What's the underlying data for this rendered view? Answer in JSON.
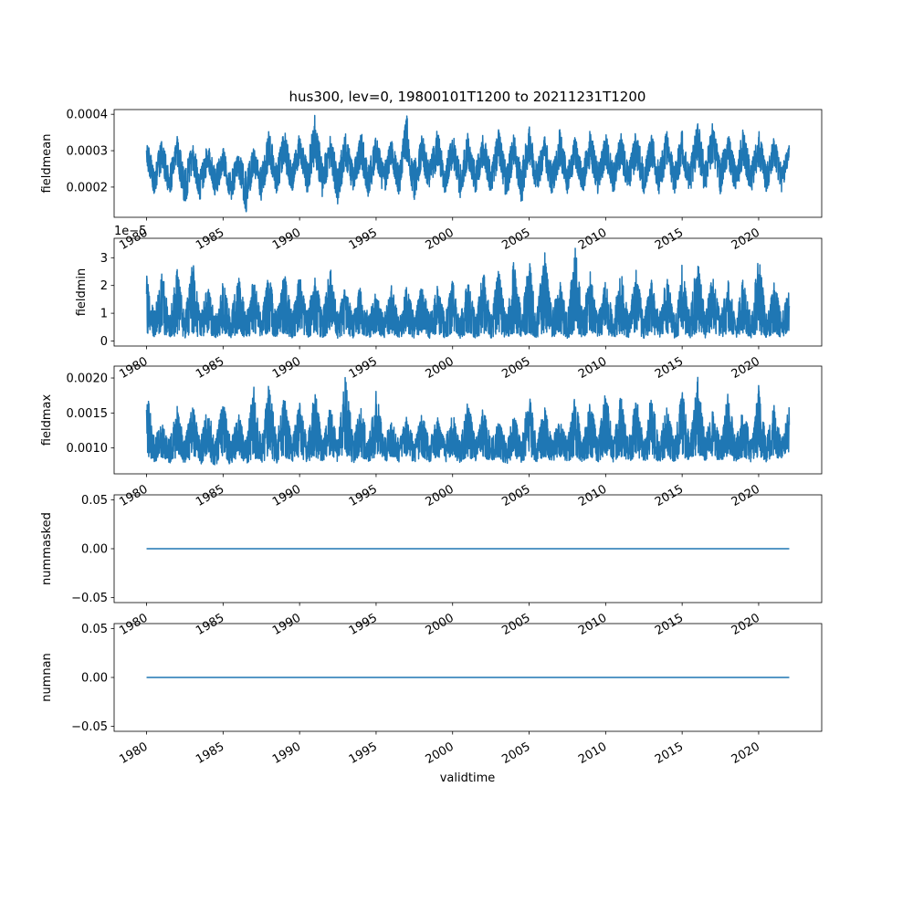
{
  "figure": {
    "title": "hus300, lev=0, 19800101T1200 to 20211231T1200",
    "xlabel": "validtime"
  },
  "chart_data": [
    {
      "type": "line",
      "ylabel": "fieldmean",
      "offset_text": "",
      "yticks": [
        0.0002,
        0.0003,
        0.0004
      ],
      "ytick_labels": [
        "0.0002",
        "0.0003",
        "0.0004"
      ],
      "ylim": [
        0.000117,
        0.000413
      ],
      "xlim": [
        1977.88,
        2024.12
      ],
      "xticks": [
        1980,
        1985,
        1990,
        1995,
        2000,
        2005,
        2010,
        2015,
        2020
      ],
      "xtick_labels": [
        "1980",
        "1985",
        "1990",
        "1995",
        "2000",
        "2005",
        "2010",
        "2015",
        "2020"
      ],
      "color": "#1f77b4",
      "series_envelope": {
        "x": [
          1980.0,
          1980.5,
          1981.0,
          1981.5,
          1982.0,
          1982.5,
          1983.0,
          1983.5,
          1984.0,
          1984.5,
          1985.0,
          1985.5,
          1986.0,
          1986.5,
          1987.0,
          1987.5,
          1988.0,
          1988.5,
          1989.0,
          1989.5,
          1990.0,
          1990.5,
          1991.0,
          1991.5,
          1992.0,
          1992.5,
          1993.0,
          1993.5,
          1994.0,
          1994.5,
          1995.0,
          1995.5,
          1996.0,
          1996.5,
          1997.0,
          1997.5,
          1998.0,
          1998.5,
          1999.0,
          1999.5,
          2000.0,
          2000.5,
          2001.0,
          2001.5,
          2002.0,
          2002.5,
          2003.0,
          2003.5,
          2004.0,
          2004.5,
          2005.0,
          2005.5,
          2006.0,
          2006.5,
          2007.0,
          2007.5,
          2008.0,
          2008.5,
          2009.0,
          2009.5,
          2010.0,
          2010.5,
          2011.0,
          2011.5,
          2012.0,
          2012.5,
          2013.0,
          2013.5,
          2014.0,
          2014.5,
          2015.0,
          2015.5,
          2016.0,
          2016.5,
          2017.0,
          2017.5,
          2018.0,
          2018.5,
          2019.0,
          2019.5,
          2020.0,
          2020.5,
          2021.0,
          2021.5,
          2022.0
        ],
        "y_max": [
          0.00033,
          0.00026,
          0.00033,
          0.00025,
          0.00034,
          0.00025,
          0.00032,
          0.00025,
          0.00032,
          0.00025,
          0.00031,
          0.00024,
          0.0003,
          0.00024,
          0.00031,
          0.00025,
          0.00036,
          0.00026,
          0.00036,
          0.00026,
          0.00035,
          0.00027,
          0.0004,
          0.00027,
          0.00034,
          0.00026,
          0.00035,
          0.00026,
          0.00036,
          0.00026,
          0.00034,
          0.00026,
          0.00033,
          0.00026,
          0.0004,
          0.00027,
          0.00035,
          0.00027,
          0.00036,
          0.00026,
          0.00035,
          0.00026,
          0.00035,
          0.00026,
          0.00035,
          0.00026,
          0.00036,
          0.00026,
          0.00035,
          0.00026,
          0.00037,
          0.00026,
          0.00035,
          0.00026,
          0.00036,
          0.00026,
          0.00034,
          0.00026,
          0.00036,
          0.00026,
          0.00035,
          0.00026,
          0.00035,
          0.00026,
          0.00036,
          0.00026,
          0.00035,
          0.00026,
          0.00036,
          0.00026,
          0.00036,
          0.00026,
          0.00039,
          0.00027,
          0.00038,
          0.00027,
          0.00035,
          0.00026,
          0.00037,
          0.00026,
          0.00036,
          0.00026,
          0.00034,
          0.00026,
          0.00032
        ],
        "y_min": [
          0.00026,
          0.00018,
          0.00025,
          0.00017,
          0.00026,
          0.00014,
          0.00025,
          0.00016,
          0.00025,
          0.00017,
          0.00024,
          0.00016,
          0.00023,
          0.00013,
          0.00024,
          0.00016,
          0.00026,
          0.00018,
          0.00026,
          0.00018,
          0.00027,
          0.00018,
          0.00027,
          0.00017,
          0.00026,
          0.00015,
          0.00026,
          0.00018,
          0.00026,
          0.00017,
          0.00026,
          0.00017,
          0.00026,
          0.00017,
          0.00027,
          0.00016,
          0.00026,
          0.00018,
          0.00026,
          0.00018,
          0.00026,
          0.00017,
          0.00026,
          0.00018,
          0.00026,
          0.00018,
          0.00026,
          0.00016,
          0.00026,
          0.00015,
          0.00027,
          0.00018,
          0.00026,
          0.00017,
          0.00026,
          0.00018,
          0.00026,
          0.00018,
          0.00026,
          0.00018,
          0.00026,
          0.00018,
          0.00026,
          0.00018,
          0.00026,
          0.00018,
          0.00026,
          0.00018,
          0.00026,
          0.00018,
          0.00026,
          0.00018,
          0.00027,
          0.00018,
          0.00027,
          0.00018,
          0.00026,
          0.00018,
          0.00026,
          0.00018,
          0.00026,
          0.00018,
          0.00026,
          0.00018,
          0.00028
        ]
      }
    },
    {
      "type": "line",
      "ylabel": "fieldmin",
      "offset_text": "1e−5",
      "yticks": [
        0,
        1,
        2,
        3
      ],
      "ytick_labels": [
        "0",
        "1",
        "2",
        "3"
      ],
      "ylim": [
        -0.18,
        3.7
      ],
      "xlim": [
        1977.88,
        2024.12
      ],
      "xticks": [
        1980,
        1985,
        1990,
        1995,
        2000,
        2005,
        2010,
        2015,
        2020
      ],
      "xtick_labels": [
        "1980",
        "1985",
        "1990",
        "1995",
        "2000",
        "2005",
        "2010",
        "2015",
        "2020"
      ],
      "color": "#1f77b4",
      "series_envelope": {
        "x": [
          1980.0,
          1980.5,
          1981.0,
          1981.5,
          1982.0,
          1982.5,
          1983.0,
          1983.5,
          1984.0,
          1984.5,
          1985.0,
          1985.5,
          1986.0,
          1986.5,
          1987.0,
          1987.5,
          1988.0,
          1988.5,
          1989.0,
          1989.5,
          1990.0,
          1990.5,
          1991.0,
          1991.5,
          1992.0,
          1992.5,
          1993.0,
          1993.5,
          1994.0,
          1994.5,
          1995.0,
          1995.5,
          1996.0,
          1996.5,
          1997.0,
          1997.5,
          1998.0,
          1998.5,
          1999.0,
          1999.5,
          2000.0,
          2000.5,
          2001.0,
          2001.5,
          2002.0,
          2002.5,
          2003.0,
          2003.5,
          2004.0,
          2004.5,
          2005.0,
          2005.5,
          2006.0,
          2006.5,
          2007.0,
          2007.5,
          2008.0,
          2008.5,
          2009.0,
          2009.5,
          2010.0,
          2010.5,
          2011.0,
          2011.5,
          2012.0,
          2012.5,
          2013.0,
          2013.5,
          2014.0,
          2014.5,
          2015.0,
          2015.5,
          2016.0,
          2016.5,
          2017.0,
          2017.5,
          2018.0,
          2018.5,
          2019.0,
          2019.5,
          2020.0,
          2020.5,
          2021.0,
          2021.5,
          2022.0
        ],
        "y_max": [
          2.5,
          1.0,
          2.6,
          0.9,
          2.6,
          0.9,
          3.0,
          0.9,
          2.0,
          0.9,
          2.2,
          0.9,
          2.5,
          0.9,
          2.3,
          0.9,
          2.5,
          1.0,
          2.5,
          1.0,
          2.4,
          1.0,
          2.4,
          1.0,
          2.7,
          1.0,
          2.0,
          0.9,
          2.2,
          0.9,
          1.8,
          0.9,
          2.0,
          0.9,
          2.0,
          0.9,
          2.1,
          0.9,
          2.0,
          0.9,
          2.2,
          0.9,
          2.2,
          0.9,
          2.6,
          0.9,
          2.6,
          0.9,
          2.9,
          1.0,
          3.0,
          1.0,
          3.4,
          1.0,
          2.2,
          0.9,
          3.5,
          1.0,
          2.6,
          0.9,
          2.2,
          0.9,
          2.6,
          0.9,
          2.6,
          0.9,
          2.2,
          0.9,
          2.4,
          0.9,
          2.8,
          1.0,
          3.1,
          1.0,
          2.4,
          0.9,
          2.2,
          0.9,
          2.3,
          0.9,
          3.1,
          1.0,
          2.3,
          0.9,
          1.9
        ],
        "y_min": [
          0.3,
          0.1,
          0.3,
          0.1,
          0.2,
          0.1,
          0.3,
          0.1,
          0.3,
          0.1,
          0.3,
          0.1,
          0.3,
          0.1,
          0.3,
          0.1,
          0.3,
          0.1,
          0.3,
          0.1,
          0.3,
          0.1,
          0.3,
          0.1,
          0.3,
          0.1,
          0.3,
          0.1,
          0.3,
          0.1,
          0.3,
          0.1,
          0.3,
          0.1,
          0.3,
          0.1,
          0.3,
          0.1,
          0.3,
          0.1,
          0.3,
          0.1,
          0.3,
          0.1,
          0.3,
          0.1,
          0.3,
          0.1,
          0.3,
          0.1,
          0.3,
          0.1,
          0.3,
          0.1,
          0.3,
          0.1,
          0.3,
          0.1,
          0.3,
          0.1,
          0.3,
          0.1,
          0.3,
          0.1,
          0.3,
          0.1,
          0.3,
          0.1,
          0.3,
          0.1,
          0.3,
          0.1,
          0.3,
          0.1,
          0.3,
          0.1,
          0.3,
          0.1,
          0.3,
          0.1,
          0.3,
          0.1,
          0.3,
          0.1,
          0.4
        ]
      }
    },
    {
      "type": "line",
      "ylabel": "fieldmax",
      "offset_text": "",
      "yticks": [
        0.001,
        0.0015,
        0.002
      ],
      "ytick_labels": [
        "0.0010",
        "0.0015",
        "0.0020"
      ],
      "ylim": [
        0.00063,
        0.00217
      ],
      "xlim": [
        1977.88,
        2024.12
      ],
      "xticks": [
        1980,
        1985,
        1990,
        1995,
        2000,
        2005,
        2010,
        2015,
        2020
      ],
      "xtick_labels": [
        "1980",
        "1985",
        "1990",
        "1995",
        "2000",
        "2005",
        "2010",
        "2015",
        "2020"
      ],
      "color": "#1f77b4",
      "series_envelope": {
        "x": [
          1980.0,
          1980.5,
          1981.0,
          1981.5,
          1982.0,
          1982.5,
          1983.0,
          1983.5,
          1984.0,
          1984.5,
          1985.0,
          1985.5,
          1986.0,
          1986.5,
          1987.0,
          1987.5,
          1988.0,
          1988.5,
          1989.0,
          1989.5,
          1990.0,
          1990.5,
          1991.0,
          1991.5,
          1992.0,
          1992.5,
          1993.0,
          1993.5,
          1994.0,
          1994.5,
          1995.0,
          1995.5,
          1996.0,
          1996.5,
          1997.0,
          1997.5,
          1998.0,
          1998.5,
          1999.0,
          1999.5,
          2000.0,
          2000.5,
          2001.0,
          2001.5,
          2002.0,
          2002.5,
          2003.0,
          2003.5,
          2004.0,
          2004.5,
          2005.0,
          2005.5,
          2006.0,
          2006.5,
          2007.0,
          2007.5,
          2008.0,
          2008.5,
          2009.0,
          2009.5,
          2010.0,
          2010.5,
          2011.0,
          2011.5,
          2012.0,
          2012.5,
          2013.0,
          2013.5,
          2014.0,
          2014.5,
          2015.0,
          2015.5,
          2016.0,
          2016.5,
          2017.0,
          2017.5,
          2018.0,
          2018.5,
          2019.0,
          2019.5,
          2020.0,
          2020.5,
          2021.0,
          2021.5,
          2022.0
        ],
        "y_max": [
          0.00185,
          0.00115,
          0.00135,
          0.0011,
          0.0016,
          0.0011,
          0.00165,
          0.0011,
          0.0016,
          0.0011,
          0.0017,
          0.0011,
          0.0015,
          0.0011,
          0.0019,
          0.0011,
          0.00195,
          0.00115,
          0.00175,
          0.0011,
          0.00165,
          0.0011,
          0.00185,
          0.0011,
          0.0016,
          0.0011,
          0.00212,
          0.00115,
          0.0016,
          0.0011,
          0.0019,
          0.0011,
          0.0014,
          0.0011,
          0.00145,
          0.0011,
          0.0015,
          0.0011,
          0.00145,
          0.0011,
          0.00155,
          0.0011,
          0.0017,
          0.0011,
          0.0017,
          0.0011,
          0.0014,
          0.0011,
          0.0015,
          0.0011,
          0.0018,
          0.0011,
          0.0016,
          0.0011,
          0.00145,
          0.0011,
          0.00175,
          0.0011,
          0.0017,
          0.0011,
          0.00185,
          0.0011,
          0.0018,
          0.0011,
          0.00175,
          0.0011,
          0.0018,
          0.0011,
          0.0016,
          0.0011,
          0.00185,
          0.0011,
          0.00205,
          0.00115,
          0.00155,
          0.0011,
          0.0018,
          0.0011,
          0.0016,
          0.0011,
          0.0019,
          0.0011,
          0.00165,
          0.0011,
          0.0016
        ],
        "y_min": [
          0.00088,
          0.0008,
          0.00087,
          0.00078,
          0.00088,
          0.00078,
          0.00087,
          0.00075,
          0.00087,
          0.00072,
          0.00086,
          0.00075,
          0.00087,
          0.00077,
          0.00086,
          0.00078,
          0.00088,
          0.00078,
          0.00087,
          0.0008,
          0.00088,
          0.00079,
          0.00088,
          0.0008,
          0.00088,
          0.0008,
          0.00088,
          0.00078,
          0.00088,
          0.0008,
          0.00088,
          0.00078,
          0.00088,
          0.0008,
          0.00088,
          0.00079,
          0.00088,
          0.0008,
          0.00088,
          0.00079,
          0.00088,
          0.00078,
          0.00088,
          0.0008,
          0.00088,
          0.0008,
          0.00088,
          0.00075,
          0.00088,
          0.00079,
          0.00088,
          0.0008,
          0.00088,
          0.0008,
          0.00088,
          0.0008,
          0.00088,
          0.0008,
          0.00088,
          0.0008,
          0.00088,
          0.0008,
          0.00088,
          0.0008,
          0.00088,
          0.0008,
          0.00088,
          0.0008,
          0.00088,
          0.0008,
          0.00088,
          0.00082,
          0.00088,
          0.00082,
          0.00088,
          0.0008,
          0.00088,
          0.0008,
          0.00088,
          0.0008,
          0.00088,
          0.0008,
          0.00088,
          0.00082,
          0.00095
        ]
      }
    },
    {
      "type": "line",
      "ylabel": "nummasked",
      "offset_text": "",
      "yticks": [
        -0.05,
        0,
        0.05
      ],
      "ytick_labels": [
        "−0.05",
        "0.00",
        "0.05"
      ],
      "ylim": [
        -0.055,
        0.055
      ],
      "xlim": [
        1977.88,
        2024.12
      ],
      "xticks": [
        1980,
        1985,
        1990,
        1995,
        2000,
        2005,
        2010,
        2015,
        2020
      ],
      "xtick_labels": [
        "1980",
        "1985",
        "1990",
        "1995",
        "2000",
        "2005",
        "2010",
        "2015",
        "2020"
      ],
      "color": "#1f77b4",
      "x": [
        1980.0,
        2022.0
      ],
      "y": [
        0,
        0
      ]
    },
    {
      "type": "line",
      "ylabel": "numnan",
      "offset_text": "",
      "yticks": [
        -0.05,
        0,
        0.05
      ],
      "ytick_labels": [
        "−0.05",
        "0.00",
        "0.05"
      ],
      "ylim": [
        -0.055,
        0.055
      ],
      "xlim": [
        1977.88,
        2024.12
      ],
      "xticks": [
        1980,
        1985,
        1990,
        1995,
        2000,
        2005,
        2010,
        2015,
        2020
      ],
      "xtick_labels": [
        "1980",
        "1985",
        "1990",
        "1995",
        "2000",
        "2005",
        "2010",
        "2015",
        "2020"
      ],
      "color": "#1f77b4",
      "x": [
        1980.0,
        2022.0
      ],
      "y": [
        0,
        0
      ]
    }
  ]
}
